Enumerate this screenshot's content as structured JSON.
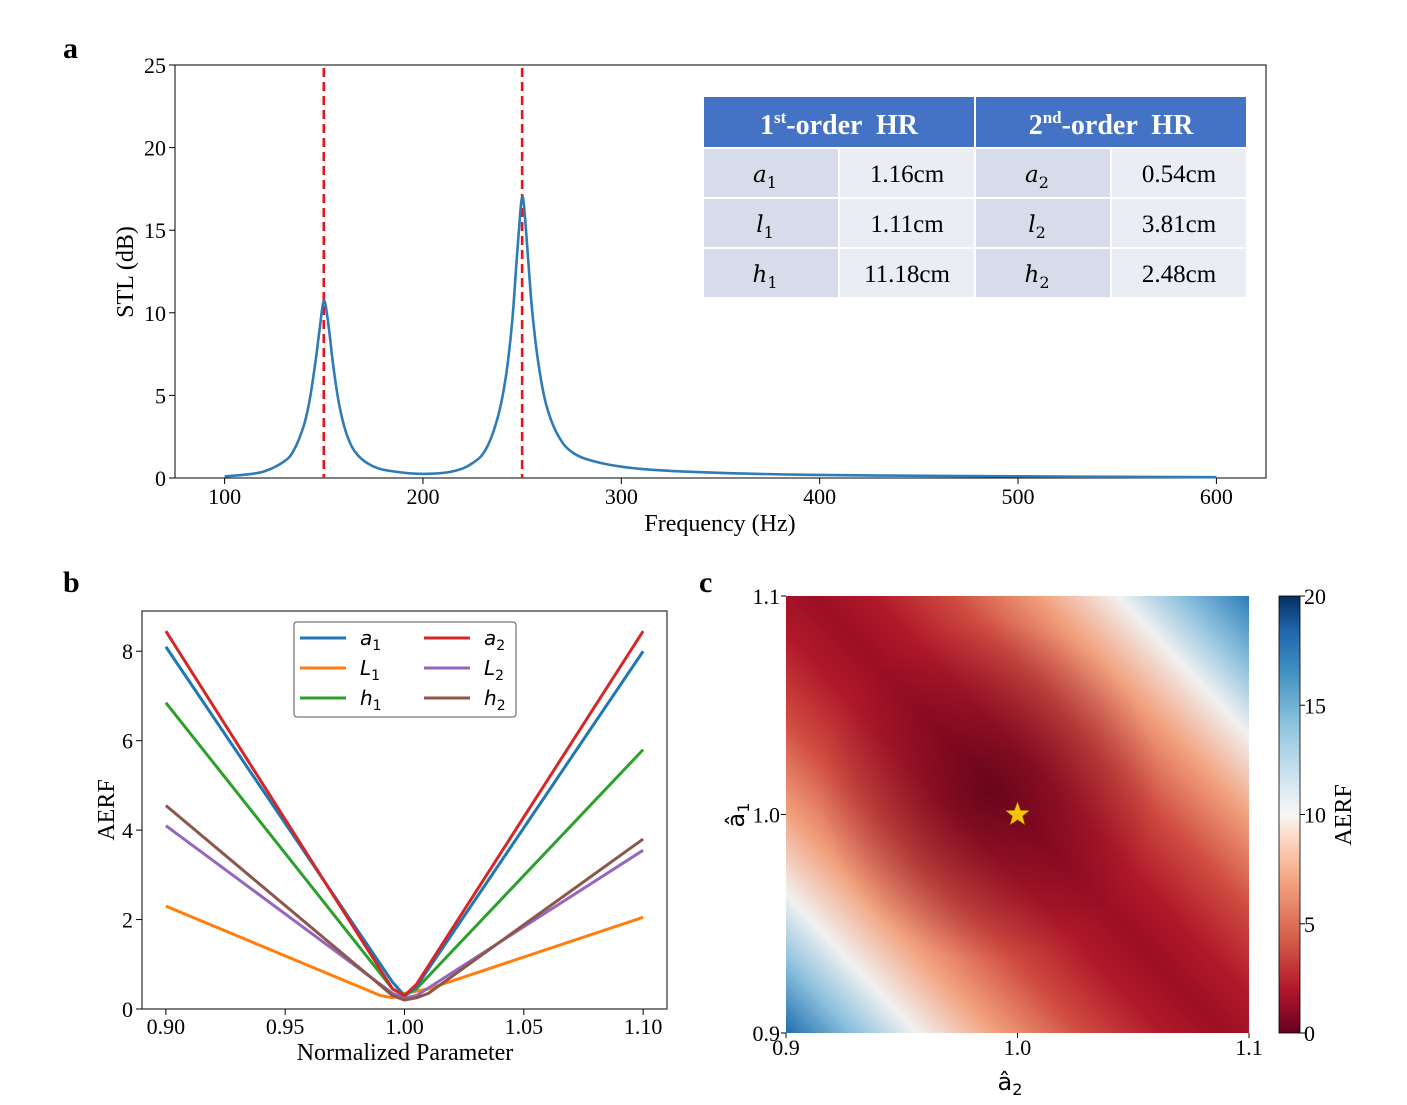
{
  "panel_labels": {
    "a": "a",
    "b": "b",
    "c": "c"
  },
  "colors": {
    "stl_line": "#2f7bb6",
    "marker_line": "#e8141c",
    "table_header": "#4472c4",
    "table_row_a": "#d7dcea",
    "table_row_b": "#ebedf4",
    "star": "#f2c600"
  },
  "table": {
    "header": [
      {
        "pre": "1",
        "sup": "st",
        "post": "-order  HR"
      },
      {
        "pre": "2",
        "sup": "nd",
        "post": "-order  HR"
      }
    ],
    "rows": [
      {
        "s1": "a",
        "n1": "1",
        "v1": "1.16cm",
        "s2": "a",
        "n2": "2",
        "v2": "0.54cm"
      },
      {
        "s1": "l",
        "n1": "1",
        "v1": "1.11cm",
        "s2": "l",
        "n2": "2",
        "v2": "3.81cm"
      },
      {
        "s1": "h",
        "n1": "1",
        "v1": "11.18cm",
        "s2": "h",
        "n2": "2",
        "v2": "2.48cm"
      }
    ]
  },
  "chart_data": [
    {
      "id": "a",
      "type": "line",
      "title": "",
      "xlabel": "Frequency (Hz)",
      "ylabel": "STL (dB)",
      "xlim": [
        75,
        625
      ],
      "ylim": [
        0,
        25
      ],
      "xticks": [
        100,
        200,
        300,
        400,
        500,
        600
      ],
      "yticks": [
        0,
        5,
        10,
        15,
        20,
        25
      ],
      "vlines": [
        150,
        250
      ],
      "series": [
        {
          "name": "STL",
          "x": [
            100,
            110,
            120,
            130,
            135,
            140,
            143,
            146,
            148,
            150,
            152,
            155,
            158,
            162,
            167,
            175,
            185,
            200,
            215,
            225,
            232,
            238,
            242,
            245,
            247,
            249,
            250,
            251,
            253,
            255,
            258,
            262,
            268,
            276,
            290,
            310,
            340,
            380,
            430,
            500,
            550,
            600
          ],
          "values": [
            0.1,
            0.2,
            0.4,
            1.0,
            1.7,
            3.2,
            4.8,
            7.2,
            9.1,
            10.7,
            9.6,
            6.6,
            4.3,
            2.5,
            1.4,
            0.7,
            0.4,
            0.25,
            0.4,
            0.9,
            1.8,
            3.8,
            6.3,
            9.5,
            12.8,
            16.0,
            17.0,
            16.4,
            13.3,
            10.2,
            7.1,
            4.5,
            2.6,
            1.5,
            0.9,
            0.55,
            0.35,
            0.22,
            0.15,
            0.1,
            0.07,
            0.05
          ]
        }
      ]
    },
    {
      "id": "b",
      "type": "line",
      "title": "",
      "xlabel": "Normalized Parameter",
      "ylabel": "AERF",
      "xlim": [
        0.89,
        1.11
      ],
      "ylim": [
        0,
        8.9
      ],
      "xticks": [
        "0.90",
        "0.95",
        "1.00",
        "1.05",
        "1.10"
      ],
      "yticks": [
        0,
        2,
        4,
        6,
        8
      ],
      "legend": "top-center",
      "series": [
        {
          "name": "a",
          "sub": "1",
          "color": "#1f77b4",
          "x": [
            0.9,
            0.995,
            1.0,
            1.005,
            1.1
          ],
          "values": [
            8.1,
            0.6,
            0.3,
            0.5,
            8.0
          ]
        },
        {
          "name": "a",
          "sub": "2",
          "color": "#d62728",
          "x": [
            0.9,
            0.995,
            1.0,
            1.005,
            1.1
          ],
          "values": [
            8.45,
            0.45,
            0.3,
            0.55,
            8.45
          ]
        },
        {
          "name": "L",
          "sub": "1",
          "color": "#ff7f0e",
          "x": [
            0.9,
            0.99,
            0.995,
            1.0,
            1.005,
            1.01,
            1.1
          ],
          "values": [
            2.3,
            0.3,
            0.25,
            0.35,
            0.4,
            0.45,
            2.05
          ]
        },
        {
          "name": "L",
          "sub": "2",
          "color": "#9467bd",
          "x": [
            0.9,
            0.995,
            1.0,
            1.005,
            1.1
          ],
          "values": [
            4.1,
            0.35,
            0.25,
            0.3,
            3.55
          ]
        },
        {
          "name": "h",
          "sub": "1",
          "color": "#2ca02c",
          "x": [
            0.9,
            0.995,
            1.0,
            1.005,
            1.1
          ],
          "values": [
            6.85,
            0.45,
            0.3,
            0.45,
            5.8
          ]
        },
        {
          "name": "h",
          "sub": "2",
          "color": "#8c564b",
          "x": [
            0.9,
            0.995,
            1.0,
            1.005,
            1.01,
            1.1
          ],
          "values": [
            4.55,
            0.3,
            0.2,
            0.25,
            0.35,
            3.8
          ]
        }
      ]
    },
    {
      "id": "c",
      "type": "heatmap",
      "title": "",
      "xlabel": "â",
      "xlabel_sub": "2",
      "ylabel": "â",
      "ylabel_sub": "1",
      "xlim": [
        0.9,
        1.1
      ],
      "ylim": [
        0.9,
        1.1
      ],
      "xticks": [
        "0.9",
        "1.0",
        "1.1"
      ],
      "yticks": [
        "0.9",
        "1.0",
        "1.1"
      ],
      "colorbar_label": "AERF",
      "colorbar_range": [
        0,
        20
      ],
      "colorbar_ticks": [
        "0",
        "5",
        "10",
        "15",
        "20"
      ],
      "colormap": "RdBu",
      "optimum": {
        "x": 1.0,
        "y": 1.0,
        "marker": "star"
      }
    }
  ]
}
